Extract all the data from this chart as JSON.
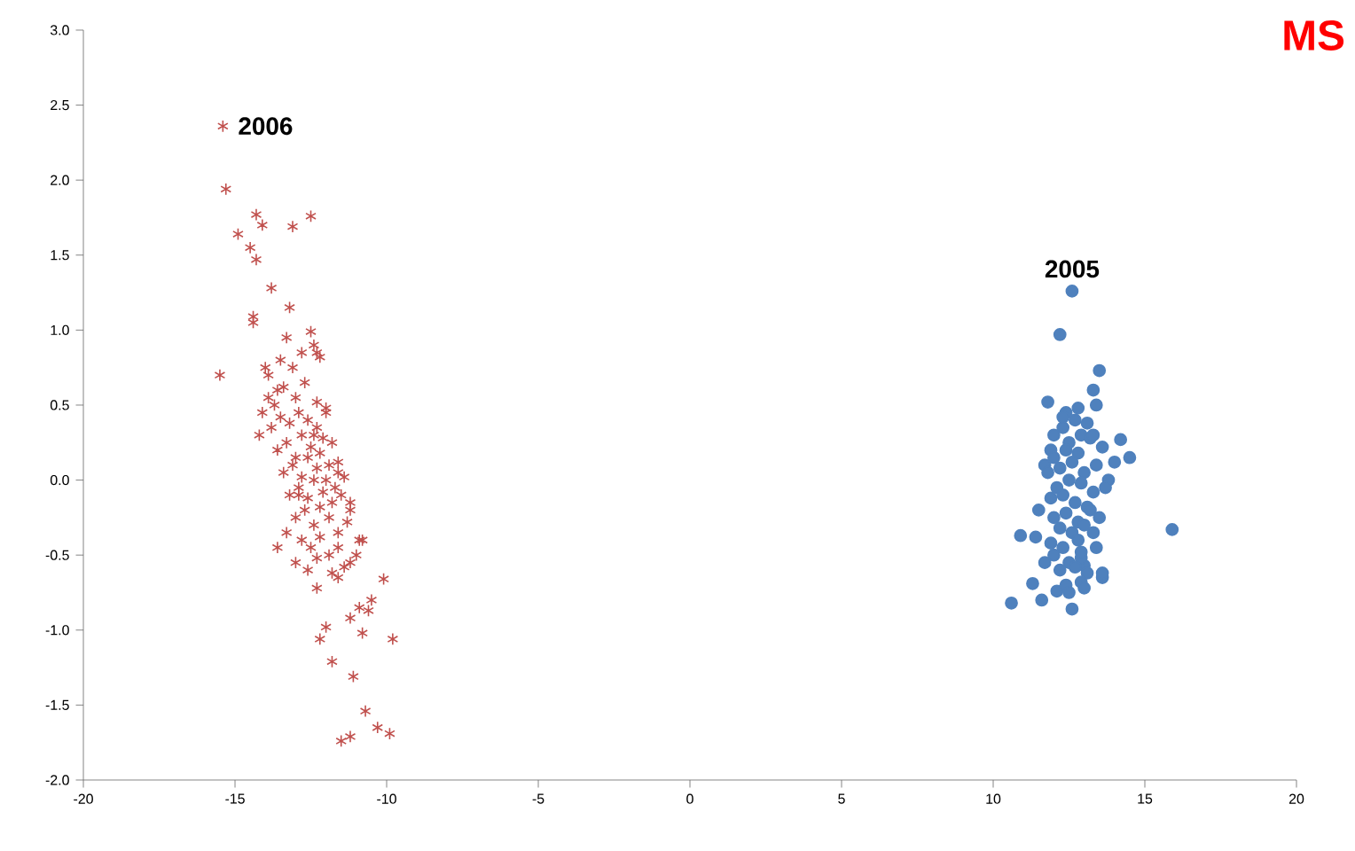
{
  "chart_data": {
    "type": "scatter",
    "title": "MS",
    "xlim": [
      -20,
      20
    ],
    "xticks": [
      -20,
      -15,
      -10,
      -5,
      0,
      5,
      10,
      15,
      20
    ],
    "ylim": [
      -2.0,
      3.0
    ],
    "yticks": [
      {
        "value": -2.0,
        "label": "-2.0"
      },
      {
        "value": -1.5,
        "label": "-1.5"
      },
      {
        "value": -1.0,
        "label": "-1.0"
      },
      {
        "value": -0.5,
        "label": "-0.5"
      },
      {
        "value": 0.0,
        "label": "0.0"
      },
      {
        "value": 0.5,
        "label": "0.5"
      },
      {
        "value": 1.0,
        "label": "1.0"
      },
      {
        "value": 1.5,
        "label": "1.5"
      },
      {
        "value": 2.0,
        "label": "2.0"
      },
      {
        "value": 2.5,
        "label": "2.5"
      },
      {
        "value": 3.0,
        "label": "3.0"
      }
    ],
    "grid": false,
    "series": [
      {
        "name": "2006",
        "color": "#c0504d",
        "marker": "cross",
        "x": [
          -15.4,
          -15.3,
          -14.9,
          -14.3,
          -14.1,
          -14.5,
          -14.3,
          -13.1,
          -12.5,
          -13.8,
          -14.4,
          -14.4,
          -15.5,
          -13.2,
          -12.5,
          -12.3,
          -14.0,
          -13.3,
          -13.5,
          -13.9,
          -13.6,
          -13.1,
          -12.8,
          -12.4,
          -12.2,
          -14.1,
          -13.9,
          -13.7,
          -13.4,
          -13.0,
          -12.7,
          -12.3,
          -12.0,
          -14.2,
          -13.8,
          -13.5,
          -13.2,
          -12.9,
          -12.6,
          -12.3,
          -12.1,
          -11.8,
          -13.6,
          -13.3,
          -13.0,
          -12.8,
          -12.5,
          -12.2,
          -11.9,
          -11.6,
          -13.4,
          -13.1,
          -12.8,
          -12.6,
          -12.3,
          -12.0,
          -11.7,
          -11.4,
          -13.2,
          -12.9,
          -12.6,
          -12.4,
          -12.1,
          -11.8,
          -11.5,
          -11.2,
          -13.0,
          -12.7,
          -12.4,
          -12.2,
          -11.9,
          -11.6,
          -11.3,
          -10.9,
          -13.3,
          -12.8,
          -12.5,
          -12.2,
          -11.9,
          -11.6,
          -11.2,
          -10.8,
          -13.6,
          -13.0,
          -12.6,
          -12.3,
          -11.8,
          -11.4,
          -11.0,
          -12.9,
          -12.4,
          -12.0,
          -11.6,
          -11.2,
          -11.6,
          -10.1,
          -10.9,
          -10.6,
          -9.8,
          -12.0,
          -12.2,
          -11.8,
          -11.1,
          -10.7,
          -10.3,
          -9.9,
          -11.5,
          -11.2,
          -10.8,
          -10.5,
          -11.2,
          -12.3
        ],
        "values": [
          2.36,
          1.94,
          1.64,
          1.77,
          1.7,
          1.55,
          1.47,
          1.69,
          1.76,
          1.28,
          1.09,
          1.05,
          0.7,
          1.15,
          0.99,
          0.85,
          0.75,
          0.95,
          0.8,
          0.7,
          0.6,
          0.75,
          0.85,
          0.9,
          0.82,
          0.45,
          0.55,
          0.5,
          0.62,
          0.55,
          0.65,
          0.52,
          0.48,
          0.3,
          0.35,
          0.42,
          0.38,
          0.45,
          0.4,
          0.35,
          0.28,
          0.25,
          0.2,
          0.25,
          0.15,
          0.3,
          0.22,
          0.18,
          0.1,
          0.12,
          0.05,
          0.1,
          0.02,
          0.15,
          0.08,
          0.0,
          -0.05,
          0.02,
          -0.1,
          -0.05,
          -0.12,
          0.0,
          -0.08,
          -0.15,
          -0.1,
          -0.2,
          -0.25,
          -0.2,
          -0.3,
          -0.18,
          -0.25,
          -0.35,
          -0.28,
          -0.4,
          -0.35,
          -0.4,
          -0.45,
          -0.38,
          -0.5,
          -0.45,
          -0.55,
          -0.4,
          -0.45,
          -0.55,
          -0.6,
          -0.52,
          -0.62,
          -0.58,
          -0.5,
          -0.1,
          0.3,
          0.45,
          0.05,
          -0.15,
          -0.65,
          -0.66,
          -0.85,
          -0.87,
          -1.06,
          -0.98,
          -1.06,
          -1.21,
          -1.31,
          -1.54,
          -1.65,
          -1.69,
          -1.74,
          -1.71,
          -1.02,
          -0.8,
          -0.92,
          -0.72
        ]
      },
      {
        "name": "2005",
        "color": "#4f81bd",
        "marker": "circle",
        "x": [
          12.6,
          12.2,
          13.5,
          15.9,
          10.6,
          12.6,
          10.9,
          11.3,
          11.8,
          14.2,
          14.5,
          14.0,
          13.8,
          13.6,
          13.0,
          11.6,
          12.1,
          13.3,
          12.8,
          12.4,
          12.0,
          11.9,
          12.3,
          12.7,
          13.1,
          13.4,
          12.5,
          12.9,
          13.2,
          11.7,
          12.0,
          12.4,
          12.8,
          13.3,
          13.6,
          11.8,
          12.2,
          12.6,
          13.0,
          13.4,
          12.1,
          12.5,
          12.9,
          13.3,
          11.9,
          12.3,
          12.7,
          13.1,
          13.7,
          11.5,
          12.0,
          12.4,
          12.8,
          13.2,
          12.2,
          12.6,
          13.0,
          13.5,
          11.4,
          11.9,
          12.3,
          12.8,
          13.3,
          12.0,
          12.5,
          12.9,
          13.4,
          12.2,
          12.7,
          13.1,
          12.4,
          12.9,
          13.6,
          11.7,
          12.5,
          13.0,
          12.3,
          12.9
        ],
        "values": [
          1.26,
          0.97,
          0.73,
          -0.33,
          -0.82,
          -0.86,
          -0.37,
          -0.69,
          0.52,
          0.27,
          0.15,
          0.12,
          0.0,
          -0.65,
          -0.57,
          -0.8,
          -0.74,
          0.6,
          0.48,
          0.45,
          0.3,
          0.2,
          0.35,
          0.4,
          0.38,
          0.5,
          0.25,
          0.3,
          0.28,
          0.1,
          0.15,
          0.2,
          0.18,
          0.3,
          0.22,
          0.05,
          0.08,
          0.12,
          0.05,
          0.1,
          -0.05,
          0.0,
          -0.02,
          -0.08,
          -0.12,
          -0.1,
          -0.15,
          -0.18,
          -0.05,
          -0.2,
          -0.25,
          -0.22,
          -0.28,
          -0.2,
          -0.32,
          -0.35,
          -0.3,
          -0.25,
          -0.38,
          -0.42,
          -0.45,
          -0.4,
          -0.35,
          -0.5,
          -0.55,
          -0.52,
          -0.45,
          -0.6,
          -0.58,
          -0.62,
          -0.7,
          -0.68,
          -0.62,
          -0.55,
          -0.75,
          -0.72,
          0.42,
          -0.48
        ]
      }
    ]
  }
}
